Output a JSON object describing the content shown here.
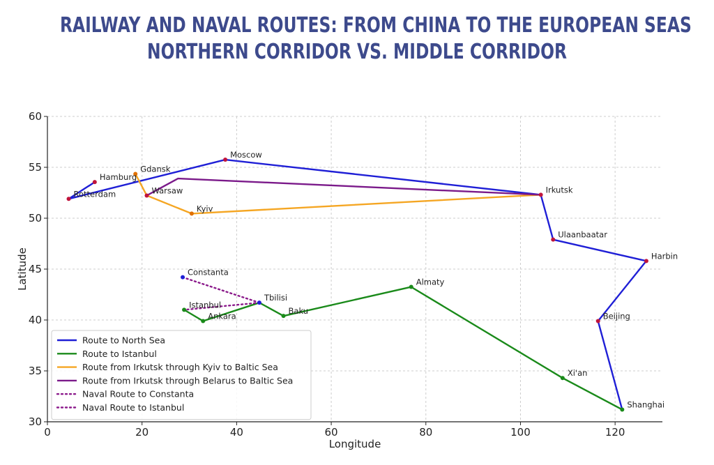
{
  "title": {
    "line1": "RAILWAY AND NAVAL ROUTES: FROM CHINA TO THE EUROPEAN SEAS",
    "line2": "NORTHERN CORRIDOR VS. MIDDLE CORRIDOR"
  },
  "chart_data": {
    "type": "line",
    "xlabel": "Longitude",
    "ylabel": "Latitude",
    "xlim": [
      0,
      130
    ],
    "ylim": [
      30,
      60
    ],
    "xticks": [
      0,
      20,
      40,
      60,
      80,
      100,
      120
    ],
    "yticks": [
      30,
      35,
      40,
      45,
      50,
      55,
      60
    ],
    "grid": true,
    "legend_position": "bottom-left",
    "colors": {
      "north_sea": "#1f1fd6",
      "istanbul": "#1a8a1a",
      "kyiv": "#f5a623",
      "belarus": "#7b1a8a",
      "naval": "#8b1a8b",
      "city_red": "#c0143c",
      "city_blue": "#1f1fd6",
      "city_green": "#1a8a1a",
      "city_orange": "#e07000"
    },
    "cities": [
      {
        "name": "Moscow",
        "lon": 37.6,
        "lat": 55.75,
        "color": "city_red"
      },
      {
        "name": "Gdansk",
        "lon": 18.6,
        "lat": 54.35,
        "color": "city_orange"
      },
      {
        "name": "Hamburg",
        "lon": 10.0,
        "lat": 53.55,
        "color": "city_red"
      },
      {
        "name": "Rotterdam",
        "lon": 4.5,
        "lat": 51.9,
        "color": "city_red"
      },
      {
        "name": "Warsaw",
        "lon": 21.0,
        "lat": 52.23,
        "color": "city_red"
      },
      {
        "name": "Kyiv",
        "lon": 30.5,
        "lat": 50.45,
        "color": "city_orange"
      },
      {
        "name": "Irkutsk",
        "lon": 104.3,
        "lat": 52.3,
        "color": "city_red"
      },
      {
        "name": "Ulaanbaatar",
        "lon": 106.9,
        "lat": 47.9,
        "color": "city_red"
      },
      {
        "name": "Harbin",
        "lon": 126.6,
        "lat": 45.8,
        "color": "city_red"
      },
      {
        "name": "Beijing",
        "lon": 116.4,
        "lat": 39.9,
        "color": "city_red"
      },
      {
        "name": "Shanghai",
        "lon": 121.5,
        "lat": 31.2,
        "color": "city_green"
      },
      {
        "name": "Xi'an",
        "lon": 108.9,
        "lat": 34.3,
        "color": "city_green"
      },
      {
        "name": "Almaty",
        "lon": 76.9,
        "lat": 43.25,
        "color": "city_green"
      },
      {
        "name": "Baku",
        "lon": 49.9,
        "lat": 40.4,
        "color": "city_green"
      },
      {
        "name": "Tbilisi",
        "lon": 44.8,
        "lat": 41.7,
        "color": "city_blue"
      },
      {
        "name": "Ankara",
        "lon": 32.9,
        "lat": 39.9,
        "color": "city_green"
      },
      {
        "name": "Istanbul",
        "lon": 28.9,
        "lat": 41.0,
        "color": "city_green"
      },
      {
        "name": "Constanta",
        "lon": 28.6,
        "lat": 44.2,
        "color": "city_blue"
      }
    ],
    "series": [
      {
        "name": "Route to North Sea",
        "color": "north_sea",
        "style": "solid",
        "points": [
          [
            121.5,
            31.2
          ],
          [
            116.4,
            39.9
          ],
          [
            126.6,
            45.8
          ],
          [
            106.9,
            47.9
          ],
          [
            104.3,
            52.3
          ],
          [
            37.6,
            55.75
          ],
          [
            4.5,
            51.9
          ],
          [
            10.0,
            53.55
          ]
        ]
      },
      {
        "name": "Route to Istanbul",
        "color": "istanbul",
        "style": "solid",
        "points": [
          [
            121.5,
            31.2
          ],
          [
            108.9,
            34.3
          ],
          [
            76.9,
            43.25
          ],
          [
            49.9,
            40.4
          ],
          [
            44.8,
            41.7
          ],
          [
            32.9,
            39.9
          ],
          [
            28.9,
            41.0
          ]
        ]
      },
      {
        "name": "Route from Irkutsk through Kyiv to Baltic Sea",
        "color": "kyiv",
        "style": "solid",
        "points": [
          [
            104.3,
            52.3
          ],
          [
            30.5,
            50.45
          ],
          [
            21.0,
            52.23
          ],
          [
            18.6,
            54.35
          ]
        ]
      },
      {
        "name": "Route from Irkutsk through Belarus to Baltic Sea",
        "color": "belarus",
        "style": "solid",
        "points": [
          [
            104.3,
            52.3
          ],
          [
            27.6,
            53.9
          ],
          [
            21.0,
            52.23
          ]
        ]
      },
      {
        "name": "Naval Route to Constanta",
        "color": "naval",
        "style": "dotted",
        "points": [
          [
            44.8,
            41.7
          ],
          [
            28.6,
            44.2
          ]
        ]
      },
      {
        "name": "Naval Route to Istanbul",
        "color": "naval",
        "style": "dotted",
        "points": [
          [
            44.8,
            41.7
          ],
          [
            28.9,
            41.0
          ]
        ]
      }
    ]
  }
}
